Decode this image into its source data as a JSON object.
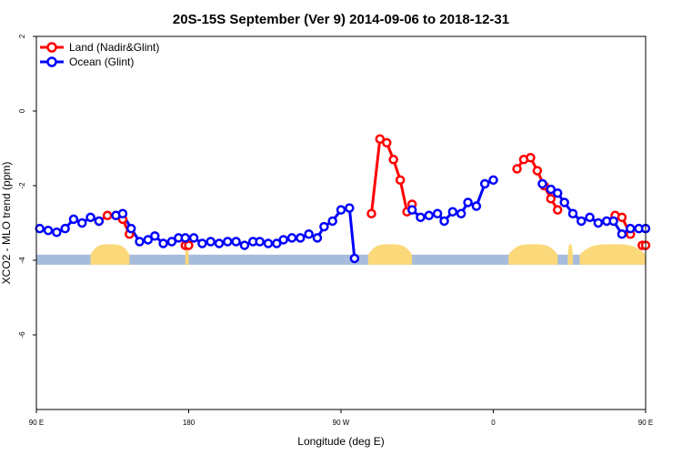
{
  "chart_data": {
    "type": "line",
    "title": "20S-15S September (Ver 9)   2014-09-06 to 2018-12-31",
    "xlabel": "Longitude (deg E)",
    "ylabel": "XCO2 - MLO trend (ppm)",
    "xlim": [
      90,
      450
    ],
    "ylim": [
      -8,
      2
    ],
    "x_ticks": [
      {
        "value": 90,
        "label": "90 E"
      },
      {
        "value": 180,
        "label": "180"
      },
      {
        "value": 270,
        "label": "90 W"
      },
      {
        "value": 360,
        "label": "0"
      },
      {
        "value": 450,
        "label": "90 E"
      },
      {
        "value": 540,
        "label": "180"
      }
    ],
    "y_ticks": [
      {
        "value": 2,
        "label": "2"
      },
      {
        "value": 0,
        "label": "0"
      },
      {
        "value": -2,
        "label": "-2"
      },
      {
        "value": -4,
        "label": "-4"
      },
      {
        "value": -6,
        "label": "-6"
      }
    ],
    "legend_position": "top-left",
    "colors": {
      "land": "#ff0000",
      "ocean": "#0000ff",
      "ocean_strip": "#a7bcdc",
      "land_strip": "#fbd97a"
    },
    "series": [
      {
        "name": "Land (Nadir&Glint)",
        "color": "#ff0000",
        "segments": [
          [
            [
              127,
              -2.95
            ],
            [
              132,
              -2.8
            ],
            [
              137,
              -2.8
            ],
            [
              141,
              -2.9
            ],
            [
              145,
              -3.3
            ]
          ],
          [
            [
              178,
              -3.6
            ],
            [
              180,
              -3.6
            ]
          ],
          [
            [
              288,
              -2.75
            ],
            [
              293,
              -0.75
            ],
            [
              297,
              -0.85
            ],
            [
              301,
              -1.3
            ],
            [
              305,
              -1.85
            ],
            [
              309,
              -2.7
            ],
            [
              312,
              -2.5
            ]
          ],
          [
            [
              374,
              -1.55
            ],
            [
              378,
              -1.3
            ],
            [
              382,
              -1.25
            ],
            [
              386,
              -1.6
            ],
            [
              390,
              -2.0
            ],
            [
              394,
              -2.35
            ],
            [
              398,
              -2.65
            ]
          ],
          [
            [
              427,
              -2.95
            ],
            [
              432,
              -2.8
            ],
            [
              436,
              -2.85
            ],
            [
              441,
              -3.3
            ]
          ],
          [
            [
              448,
              -3.6
            ],
            [
              450,
              -3.6
            ]
          ]
        ]
      },
      {
        "name": "Ocean (Glint)",
        "color": "#0000ff",
        "segments": [
          [
            [
              92,
              -3.15
            ],
            [
              97,
              -3.2
            ],
            [
              102,
              -3.25
            ],
            [
              107,
              -3.15
            ],
            [
              112,
              -2.9
            ],
            [
              117,
              -3.0
            ],
            [
              122,
              -2.85
            ],
            [
              127,
              -2.95
            ]
          ],
          [
            [
              137,
              -2.8
            ],
            [
              141,
              -2.75
            ],
            [
              146,
              -3.15
            ],
            [
              151,
              -3.5
            ],
            [
              156,
              -3.45
            ],
            [
              160,
              -3.35
            ],
            [
              165,
              -3.55
            ],
            [
              170,
              -3.5
            ],
            [
              174,
              -3.4
            ],
            [
              178,
              -3.4
            ],
            [
              183,
              -3.4
            ],
            [
              188,
              -3.55
            ],
            [
              193,
              -3.5
            ],
            [
              198,
              -3.55
            ],
            [
              203,
              -3.5
            ],
            [
              208,
              -3.5
            ],
            [
              213,
              -3.6
            ],
            [
              218,
              -3.5
            ],
            [
              222,
              -3.5
            ],
            [
              227,
              -3.55
            ],
            [
              232,
              -3.55
            ],
            [
              236,
              -3.45
            ],
            [
              241,
              -3.4
            ],
            [
              246,
              -3.4
            ],
            [
              251,
              -3.3
            ],
            [
              256,
              -3.4
            ],
            [
              260,
              -3.1
            ],
            [
              265,
              -2.95
            ],
            [
              270,
              -2.65
            ],
            [
              275,
              -2.6
            ],
            [
              278,
              -3.95
            ]
          ],
          [
            [
              312,
              -2.65
            ],
            [
              317,
              -2.85
            ],
            [
              322,
              -2.8
            ],
            [
              327,
              -2.75
            ],
            [
              331,
              -2.95
            ],
            [
              336,
              -2.7
            ],
            [
              341,
              -2.75
            ],
            [
              345,
              -2.45
            ],
            [
              350,
              -2.55
            ],
            [
              355,
              -1.95
            ],
            [
              360,
              -1.85
            ]
          ],
          [
            [
              389,
              -1.95
            ],
            [
              394,
              -2.1
            ],
            [
              398,
              -2.2
            ],
            [
              402,
              -2.45
            ],
            [
              407,
              -2.75
            ],
            [
              412,
              -2.95
            ],
            [
              417,
              -2.85
            ],
            [
              422,
              -3.0
            ],
            [
              427,
              -2.95
            ],
            [
              431,
              -2.95
            ],
            [
              436,
              -3.3
            ],
            [
              441,
              -3.15
            ],
            [
              446,
              -3.15
            ],
            [
              450,
              -3.15
            ]
          ]
        ]
      }
    ],
    "ocean_strip": {
      "y_top": -3.85,
      "y_bottom": -4.12
    },
    "land_intervals": [
      [
        122,
        145
      ],
      [
        178,
        180
      ],
      [
        286,
        312
      ],
      [
        369,
        398
      ],
      [
        404,
        407
      ],
      [
        411,
        450
      ]
    ],
    "land_hump_height": 0.28
  },
  "legend": {
    "land_label": "Land (Nadir&Glint)",
    "ocean_label": "Ocean (Glint)"
  }
}
